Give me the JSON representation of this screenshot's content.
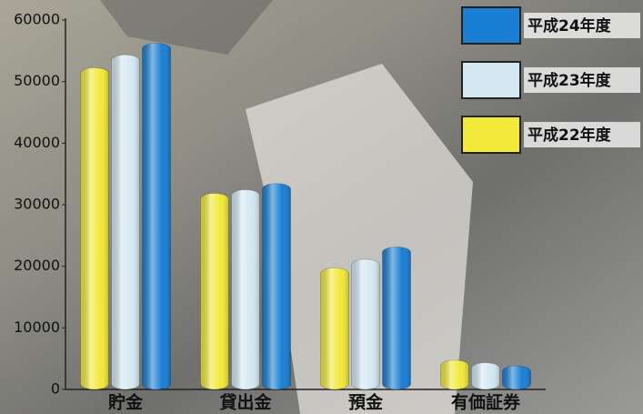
{
  "chart_data": {
    "type": "bar",
    "categories": [
      "貯金",
      "貸出金",
      "預金",
      "有価証券"
    ],
    "series": [
      {
        "name": "平成24年度",
        "color": "#1a7fd4",
        "values": [
          55500,
          32700,
          22400,
          3100
        ]
      },
      {
        "name": "平成23年度",
        "color": "#d4e8f2",
        "values": [
          53600,
          31700,
          20400,
          3600
        ]
      },
      {
        "name": "平成22年度",
        "color": "#f2e93a",
        "values": [
          51500,
          31100,
          19000,
          4000
        ]
      }
    ],
    "ylim": [
      0,
      60000
    ],
    "yticks": [
      0,
      10000,
      20000,
      30000,
      40000,
      50000,
      60000
    ],
    "legend": "top-right"
  }
}
